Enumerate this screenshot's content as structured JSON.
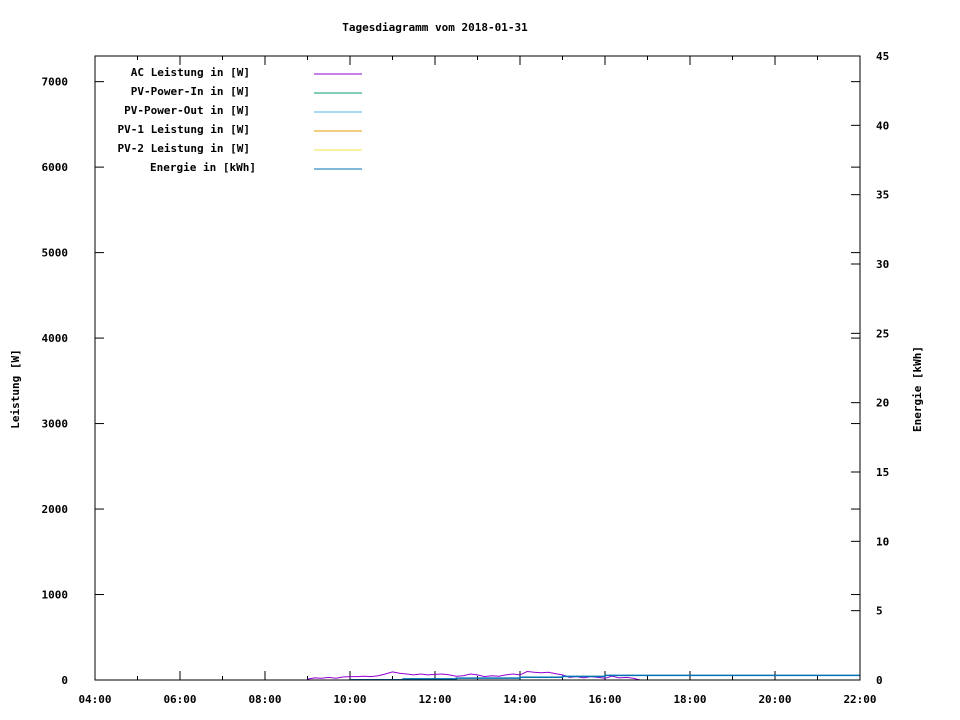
{
  "chart_data": {
    "type": "line",
    "title": "Tagesdiagramm vom 2018-01-31",
    "xlabel": "",
    "ylabel": "Leistung [W]",
    "y2label": "Energie [kWh]",
    "xlim": [
      "04:00",
      "22:00"
    ],
    "ylim": [
      0,
      7300
    ],
    "y2lim": [
      0,
      45
    ],
    "x_ticks": [
      "04:00",
      "06:00",
      "08:00",
      "10:00",
      "12:00",
      "14:00",
      "16:00",
      "18:00",
      "20:00",
      "22:00"
    ],
    "y_ticks": [
      0,
      1000,
      2000,
      3000,
      4000,
      5000,
      6000,
      7000
    ],
    "y2_ticks": [
      0,
      5,
      10,
      15,
      20,
      25,
      30,
      35,
      40,
      45
    ],
    "grid": false,
    "legend_position": "top-left",
    "series": [
      {
        "name": "AC Leistung in [W]",
        "color": "#9400D3",
        "axis": "y",
        "x": [
          "09:00",
          "09:10",
          "09:20",
          "09:30",
          "09:40",
          "09:50",
          "10:00",
          "10:10",
          "10:20",
          "10:30",
          "10:40",
          "10:50",
          "11:00",
          "11:10",
          "11:20",
          "11:30",
          "11:40",
          "11:50",
          "12:00",
          "12:10",
          "12:20",
          "12:30",
          "12:40",
          "12:50",
          "13:00",
          "13:10",
          "13:20",
          "13:30",
          "13:40",
          "13:50",
          "14:00",
          "14:10",
          "14:20",
          "14:30",
          "14:40",
          "14:50",
          "15:00",
          "15:10",
          "15:20",
          "15:30",
          "15:40",
          "15:50",
          "16:00",
          "16:10",
          "16:20",
          "16:30",
          "16:40",
          "16:50"
        ],
        "values": [
          10,
          25,
          20,
          30,
          20,
          35,
          40,
          40,
          45,
          40,
          50,
          70,
          95,
          80,
          70,
          60,
          70,
          60,
          65,
          70,
          60,
          45,
          50,
          70,
          60,
          40,
          50,
          45,
          60,
          70,
          60,
          100,
          90,
          85,
          90,
          75,
          60,
          30,
          40,
          25,
          40,
          30,
          20,
          45,
          25,
          30,
          20,
          0
        ]
      },
      {
        "name": "PV-Power-In in [W]",
        "color": "#009E73",
        "axis": "y",
        "x": [],
        "values": []
      },
      {
        "name": "PV-Power-Out in [W]",
        "color": "#56B4E9",
        "axis": "y",
        "x": [],
        "values": []
      },
      {
        "name": "PV-1 Leistung in [W]",
        "color": "#E69F00",
        "axis": "y",
        "x": [],
        "values": []
      },
      {
        "name": "PV-2 Leistung in [W]",
        "color": "#F0E442",
        "axis": "y",
        "x": [],
        "values": []
      },
      {
        "name": "Energie in [kWh]",
        "color": "#0072B2",
        "axis": "y2",
        "x": [
          "10:00",
          "11:15",
          "11:15",
          "12:30",
          "12:30",
          "14:00",
          "14:00",
          "15:00",
          "15:00",
          "16:00",
          "16:00",
          "22:00"
        ],
        "values": [
          0.02,
          0.02,
          0.08,
          0.08,
          0.14,
          0.14,
          0.2,
          0.2,
          0.26,
          0.26,
          0.33,
          0.33
        ]
      }
    ]
  }
}
